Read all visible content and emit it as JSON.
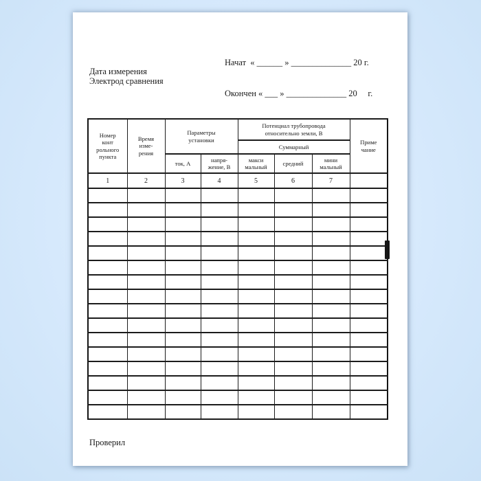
{
  "page": {
    "background_color": "#d6e9fc",
    "paper_color": "#ffffff",
    "header": {
      "started_line": "Начат  « ______ » ______________ 20 г.",
      "finished_line": "Окончен « ___ » ______________ 20     г."
    },
    "labels": {
      "measurement_date": "Дата измерения",
      "reference_electrode": "Электрод сравнения",
      "checked_by": "Проверил"
    },
    "table": {
      "header": {
        "point_number": "Номер\nконт\nрольного\nпункта",
        "measurement_time": "Время\nизме-\nрения",
        "installation_params_group": "Параметры\nустановки",
        "current": "ток, А",
        "voltage": "напря-\nжение, В",
        "potential_group": "Потенциал трубопровода\nотносительно земли, В",
        "total": "Суммарный",
        "maximum": "макси\nмальный",
        "average": "средний",
        "minimum": "мини\nмальный",
        "note": "Приме\nчание"
      },
      "column_numbers": [
        "1",
        "2",
        "3",
        "4",
        "5",
        "6",
        "7",
        ""
      ],
      "empty_row_count": 16
    }
  }
}
